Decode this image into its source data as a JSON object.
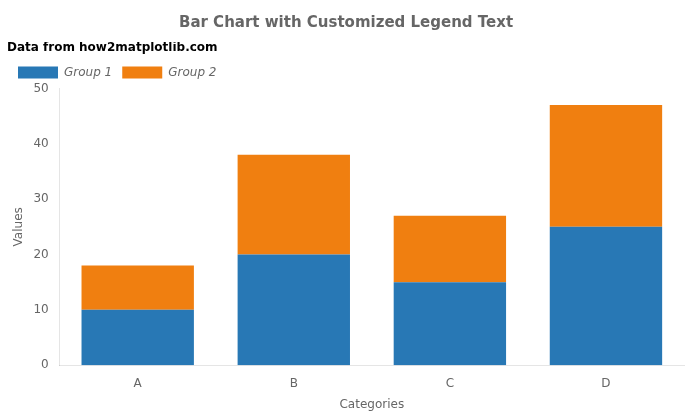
{
  "chart_data": {
    "type": "bar",
    "title": "Bar Chart with Customized Legend Text",
    "xlabel": "Categories",
    "ylabel": "Values",
    "categories": [
      "A",
      "B",
      "C",
      "D"
    ],
    "series": [
      {
        "name": "Group 1",
        "color": "#2878b5",
        "values": [
          10,
          20,
          15,
          25
        ]
      },
      {
        "name": "Group 2",
        "color": "#f07f10",
        "values": [
          8,
          18,
          12,
          22
        ]
      }
    ],
    "stacked": true,
    "legend": "upper left",
    "legend_title": "Data from how2matplotlib.com",
    "ylim": [
      0,
      50
    ],
    "yticks": [
      0,
      10,
      20,
      30,
      40,
      50
    ],
    "grid": false
  }
}
